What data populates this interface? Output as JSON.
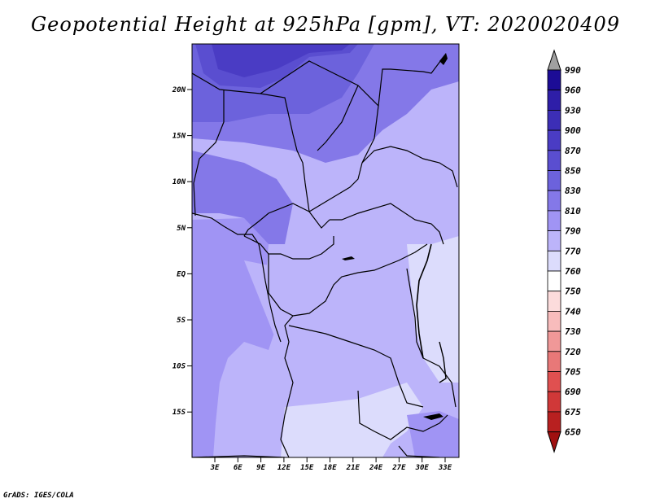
{
  "title": "Geopotential Height at 925hPa [gpm], VT: 2020020409",
  "footer": "GrADS: IGES/COLA",
  "map": {
    "lat_labels": [
      "20N",
      "15N",
      "10N",
      "5N",
      "EQ",
      "5S",
      "10S",
      "15S"
    ],
    "lon_labels": [
      "3E",
      "6E",
      "9E",
      "12E",
      "15E",
      "18E",
      "21E",
      "24E",
      "27E",
      "30E",
      "33E"
    ]
  },
  "colorbar": {
    "labels": [
      "990",
      "960",
      "930",
      "900",
      "870",
      "850",
      "830",
      "810",
      "790",
      "770",
      "760",
      "750",
      "740",
      "730",
      "720",
      "705",
      "690",
      "675",
      "650"
    ],
    "colors": [
      "#1c0c96",
      "#2e1ea8",
      "#3c2eb6",
      "#4a3cc4",
      "#5a4ed0",
      "#6c62dc",
      "#8478e8",
      "#a094f4",
      "#bcb4fa",
      "#dcdcfc",
      "#ffffff",
      "#fcdcdc",
      "#f8bcbc",
      "#f09898",
      "#e87878",
      "#e05050",
      "#d03838",
      "#b82020",
      "#a01010"
    ],
    "top_arrow_color": "#a0a0a0",
    "bottom_arrow_color": "#a01010"
  }
}
